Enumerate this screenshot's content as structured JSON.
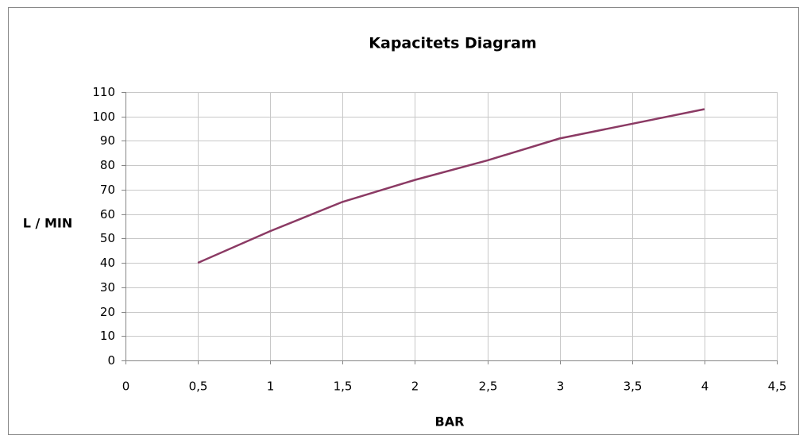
{
  "chart_data": {
    "type": "line",
    "title": "Kapacitets Diagram",
    "x_label": "BAR",
    "y_label": "L / MIN",
    "x": [
      0.5,
      1,
      1.5,
      2,
      2.5,
      3,
      3.5,
      4
    ],
    "values": [
      40,
      53,
      65,
      74,
      82,
      91,
      97,
      103
    ],
    "color": "#8b3a64",
    "xlim": [
      0,
      4.5
    ],
    "xticks": [
      0,
      {
        "value": 0.5,
        "label": "0,5"
      },
      1,
      {
        "value": 1.5,
        "label": "1,5"
      },
      2,
      {
        "value": 2.5,
        "label": "2,5"
      },
      3,
      {
        "value": 3.5,
        "label": "3,5"
      },
      4,
      {
        "value": 4.5,
        "label": "4,5"
      }
    ],
    "ylim": [
      0,
      110
    ],
    "yticks": [
      0,
      10,
      20,
      30,
      40,
      50,
      60,
      70,
      80,
      90,
      100,
      110
    ],
    "grid": true
  }
}
